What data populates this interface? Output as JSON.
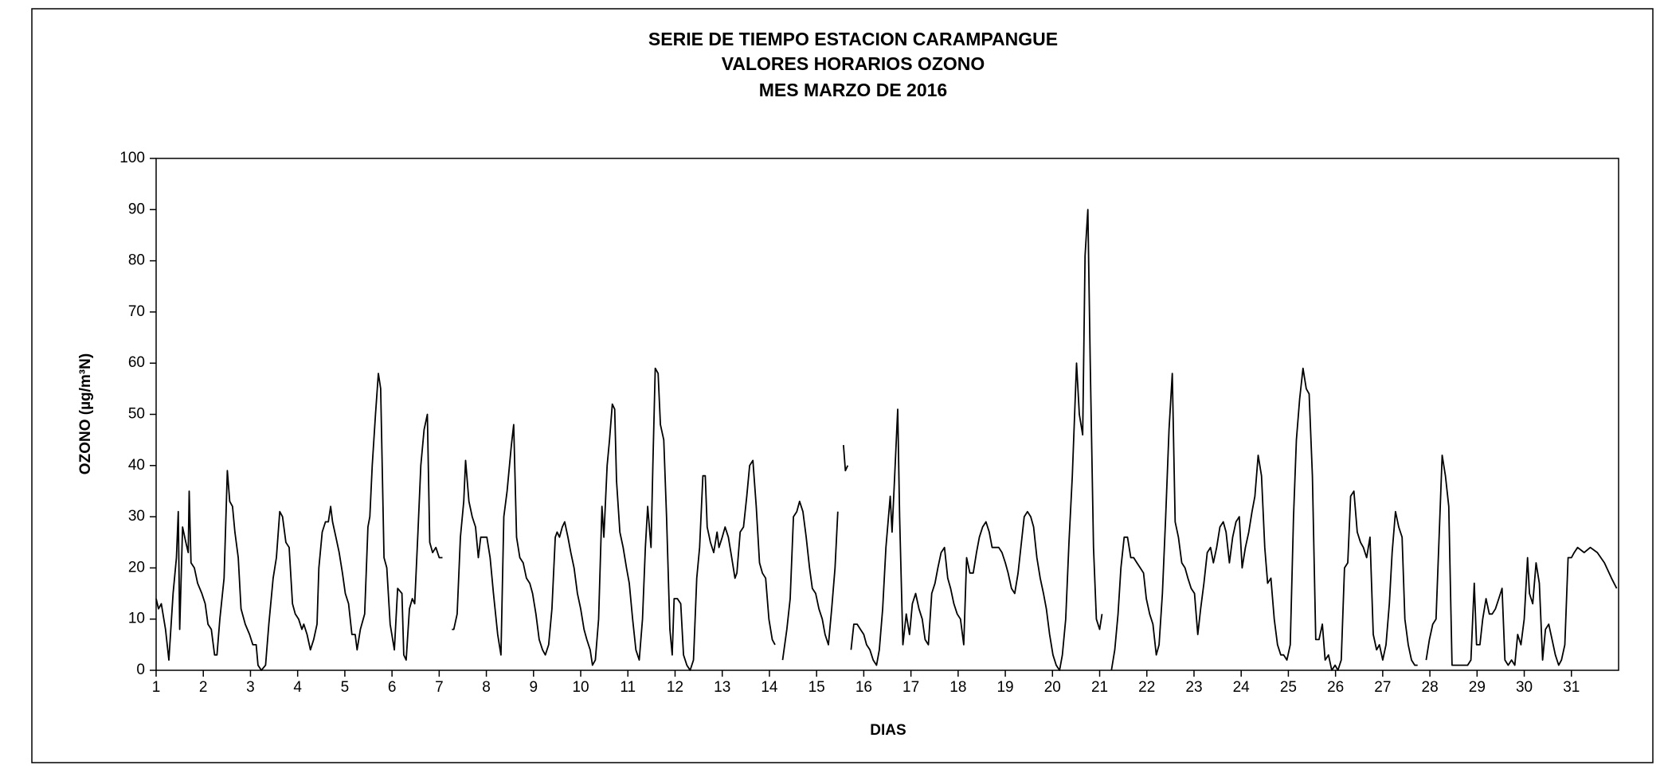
{
  "chart_data": {
    "type": "line",
    "title": [
      "SERIE DE TIEMPO ESTACION CARAMPANGUE",
      "VALORES HORARIOS OZONO",
      "MES MARZO DE 2016"
    ],
    "x_label": "DIAS",
    "y_label": "OZONO (µg/m³N)",
    "color": "#000000",
    "xlim": [
      1,
      32
    ],
    "ylim": [
      0,
      100
    ],
    "xticks": [
      1,
      2,
      3,
      4,
      5,
      6,
      7,
      8,
      9,
      10,
      11,
      12,
      13,
      14,
      15,
      16,
      17,
      18,
      19,
      20,
      21,
      22,
      23,
      24,
      25,
      26,
      27,
      28,
      29,
      30,
      31
    ],
    "yticks": [
      0,
      10,
      20,
      30,
      40,
      50,
      60,
      70,
      80,
      90,
      100
    ],
    "x": [
      1.0,
      1.05,
      1.11,
      1.2,
      1.27,
      1.36,
      1.43,
      1.47,
      1.5,
      1.56,
      1.63,
      1.68,
      1.7,
      1.74,
      1.81,
      1.88,
      1.97,
      2.04,
      2.1,
      2.17,
      2.24,
      2.29,
      2.35,
      2.44,
      2.51,
      2.56,
      2.62,
      2.67,
      2.74,
      2.8,
      2.89,
      2.98,
      3.05,
      3.12,
      3.16,
      3.23,
      3.32,
      3.39,
      3.48,
      3.55,
      3.62,
      3.68,
      3.75,
      3.82,
      3.89,
      3.95,
      4.02,
      4.09,
      4.13,
      4.2,
      4.27,
      4.34,
      4.41,
      4.45,
      4.52,
      4.59,
      4.65,
      4.7,
      4.74,
      4.81,
      4.88,
      4.95,
      5.01,
      5.08,
      5.15,
      5.22,
      5.26,
      5.33,
      5.42,
      5.49,
      5.53,
      5.58,
      5.65,
      5.71,
      5.76,
      5.83,
      5.89,
      5.96,
      6.05,
      6.12,
      6.21,
      6.25,
      6.3,
      6.37,
      6.43,
      6.48,
      6.55,
      6.61,
      6.68,
      6.75,
      6.8,
      6.86,
      6.93,
      7.0,
      7.07,
      7.17,
      7.27,
      7.31,
      7.38,
      7.45,
      7.52,
      7.56,
      7.63,
      7.7,
      7.77,
      7.83,
      7.88,
      7.95,
      8.01,
      8.08,
      8.15,
      8.24,
      8.31,
      8.37,
      8.44,
      8.53,
      8.58,
      8.64,
      8.71,
      8.78,
      8.85,
      8.92,
      8.98,
      9.05,
      9.12,
      9.19,
      9.25,
      9.32,
      9.39,
      9.46,
      9.5,
      9.55,
      9.61,
      9.66,
      9.73,
      9.79,
      9.86,
      9.93,
      10.0,
      10.07,
      10.13,
      10.2,
      10.25,
      10.31,
      10.38,
      10.45,
      10.49,
      10.56,
      10.61,
      10.67,
      10.72,
      10.76,
      10.83,
      10.9,
      10.97,
      11.03,
      11.1,
      11.17,
      11.24,
      11.31,
      11.37,
      11.42,
      11.49,
      11.53,
      11.58,
      11.64,
      11.69,
      11.76,
      11.82,
      11.89,
      11.94,
      11.98,
      12.05,
      12.12,
      12.18,
      12.25,
      12.32,
      12.39,
      12.46,
      12.52,
      12.59,
      12.64,
      12.68,
      12.75,
      12.82,
      12.89,
      12.93,
      13.0,
      13.06,
      13.13,
      13.2,
      13.27,
      13.31,
      13.38,
      13.45,
      13.52,
      13.58,
      13.65,
      13.72,
      13.79,
      13.85,
      13.92,
      13.99,
      14.06,
      14.12,
      14.2,
      14.28,
      14.37,
      14.44,
      14.51,
      14.58,
      14.64,
      14.71,
      14.78,
      14.85,
      14.91,
      14.98,
      15.05,
      15.12,
      15.18,
      15.25,
      15.32,
      15.39,
      15.45,
      15.51,
      15.57,
      15.61,
      15.66,
      15.7,
      15.73,
      15.79,
      15.86,
      15.93,
      16.0,
      16.06,
      16.13,
      16.2,
      16.27,
      16.33,
      16.4,
      16.47,
      16.56,
      16.6,
      16.65,
      16.72,
      16.76,
      16.83,
      16.9,
      16.97,
      17.03,
      17.1,
      17.17,
      17.24,
      17.3,
      17.37,
      17.44,
      17.51,
      17.57,
      17.64,
      17.71,
      17.78,
      17.84,
      17.91,
      17.98,
      18.05,
      18.12,
      18.18,
      18.25,
      18.32,
      18.39,
      18.45,
      18.52,
      18.59,
      18.66,
      18.72,
      18.79,
      18.86,
      18.93,
      19.0,
      19.06,
      19.13,
      19.2,
      19.27,
      19.33,
      19.4,
      19.47,
      19.54,
      19.6,
      19.67,
      19.74,
      19.81,
      19.87,
      19.94,
      20.01,
      20.08,
      20.15,
      20.21,
      20.28,
      20.35,
      20.42,
      20.51,
      20.57,
      20.64,
      20.69,
      20.75,
      20.8,
      20.87,
      20.93,
      21.0,
      21.05,
      21.15,
      21.25,
      21.32,
      21.39,
      21.45,
      21.52,
      21.59,
      21.66,
      21.72,
      21.79,
      21.86,
      21.93,
      21.99,
      22.06,
      22.13,
      22.2,
      22.26,
      22.33,
      22.4,
      22.47,
      22.54,
      22.6,
      22.67,
      22.74,
      22.81,
      22.87,
      22.94,
      23.01,
      23.08,
      23.14,
      23.21,
      23.28,
      23.35,
      23.41,
      23.48,
      23.55,
      23.62,
      23.68,
      23.75,
      23.82,
      23.89,
      23.96,
      24.02,
      24.09,
      24.16,
      24.23,
      24.29,
      24.36,
      24.43,
      24.5,
      24.56,
      24.63,
      24.7,
      24.77,
      24.84,
      24.9,
      24.97,
      25.04,
      25.11,
      25.17,
      25.24,
      25.31,
      25.38,
      25.44,
      25.51,
      25.58,
      25.65,
      25.72,
      25.78,
      25.85,
      25.92,
      25.99,
      26.05,
      26.12,
      26.19,
      26.26,
      26.32,
      26.39,
      26.46,
      26.53,
      26.59,
      26.66,
      26.73,
      26.8,
      26.87,
      26.93,
      27.0,
      27.07,
      27.14,
      27.2,
      27.27,
      27.34,
      27.41,
      27.47,
      27.54,
      27.61,
      27.68,
      27.74,
      27.83,
      27.92,
      27.99,
      28.06,
      28.13,
      28.2,
      28.26,
      28.33,
      28.4,
      28.47,
      28.53,
      28.6,
      28.67,
      28.74,
      28.8,
      28.87,
      28.94,
      28.99,
      29.06,
      29.12,
      29.19,
      29.26,
      29.32,
      29.39,
      29.46,
      29.53,
      29.59,
      29.66,
      29.73,
      29.8,
      29.86,
      29.93,
      30.0,
      30.07,
      30.11,
      30.18,
      30.25,
      30.32,
      30.39,
      30.45,
      30.52,
      30.59,
      30.66,
      30.73,
      30.79,
      30.86,
      30.93,
      31.0,
      31.06,
      31.13,
      31.27,
      31.4,
      31.55,
      31.7,
      31.85,
      31.96
    ],
    "values": [
      14,
      12,
      13,
      8,
      2,
      15,
      22,
      31,
      8,
      28,
      25,
      23,
      35,
      21,
      20,
      17,
      15,
      13,
      9,
      8,
      3,
      3,
      10,
      18,
      39,
      33,
      32,
      27,
      22,
      12,
      9,
      7,
      5,
      5,
      1,
      0,
      1,
      9,
      18,
      22,
      31,
      30,
      25,
      24,
      13,
      11,
      10,
      8,
      9,
      7,
      4,
      6,
      9,
      20,
      27,
      29,
      29,
      32,
      29,
      26,
      23,
      19,
      15,
      13,
      7,
      7,
      4,
      8,
      11,
      28,
      30,
      40,
      50,
      58,
      55,
      22,
      20,
      9,
      4,
      16,
      15,
      3,
      2,
      12,
      14,
      13,
      27,
      40,
      47,
      50,
      25,
      23,
      24,
      22,
      22,
      null,
      8,
      8,
      11,
      26,
      33,
      41,
      33,
      30,
      28,
      22,
      26,
      26,
      26,
      22,
      15,
      7,
      3,
      30,
      35,
      44,
      48,
      26,
      22,
      21,
      18,
      17,
      15,
      11,
      6,
      4,
      3,
      5,
      12,
      26,
      27,
      26,
      28,
      29,
      26,
      23,
      20,
      15,
      12,
      8,
      6,
      4,
      1,
      2,
      10,
      32,
      26,
      40,
      45,
      52,
      51,
      37,
      27,
      24,
      20,
      17,
      10,
      4,
      2,
      10,
      24,
      32,
      24,
      40,
      59,
      58,
      48,
      45,
      30,
      8,
      3,
      14,
      14,
      13,
      3,
      1,
      0,
      2,
      18,
      24,
      38,
      38,
      28,
      25,
      23,
      27,
      24,
      26,
      28,
      26,
      22,
      18,
      19,
      27,
      28,
      34,
      40,
      41,
      32,
      21,
      19,
      18,
      10,
      6,
      5,
      null,
      2,
      8,
      14,
      30,
      31,
      33,
      31,
      26,
      20,
      16,
      15,
      12,
      10,
      7,
      5,
      12,
      20,
      31,
      null,
      44,
      39,
      40,
      null,
      4,
      9,
      9,
      8,
      7,
      5,
      4,
      2,
      1,
      4,
      12,
      24,
      34,
      27,
      37,
      51,
      30,
      5,
      11,
      7,
      13,
      15,
      12,
      10,
      6,
      5,
      15,
      17,
      20,
      23,
      24,
      18,
      16,
      13,
      11,
      10,
      5,
      22,
      19,
      19,
      23,
      26,
      28,
      29,
      27,
      24,
      24,
      24,
      23,
      21,
      19,
      16,
      15,
      19,
      24,
      30,
      31,
      30,
      28,
      22,
      18,
      15,
      12,
      7,
      3,
      1,
      0,
      3,
      10,
      25,
      38,
      60,
      50,
      46,
      81,
      90,
      60,
      24,
      10,
      8,
      11,
      null,
      0,
      4,
      11,
      20,
      26,
      26,
      22,
      22,
      21,
      20,
      19,
      14,
      11,
      9,
      3,
      5,
      15,
      30,
      47,
      58,
      29,
      26,
      21,
      20,
      18,
      16,
      15,
      7,
      12,
      17,
      23,
      24,
      21,
      24,
      28,
      29,
      27,
      21,
      26,
      29,
      30,
      20,
      24,
      27,
      31,
      34,
      42,
      38,
      24,
      17,
      18,
      10,
      5,
      3,
      3,
      2,
      5,
      30,
      45,
      53,
      59,
      55,
      54,
      38,
      6,
      6,
      9,
      2,
      3,
      0,
      1,
      0,
      2,
      20,
      21,
      34,
      35,
      27,
      25,
      24,
      22,
      26,
      7,
      4,
      5,
      2,
      5,
      13,
      23,
      31,
      28,
      26,
      10,
      5,
      2,
      1,
      1,
      null,
      2,
      6,
      9,
      10,
      27,
      42,
      38,
      32,
      1,
      1,
      1,
      1,
      1,
      1,
      2,
      17,
      5,
      5,
      10,
      14,
      11,
      11,
      12,
      14,
      16,
      2,
      1,
      2,
      1,
      7,
      5,
      10,
      22,
      15,
      13,
      21,
      17,
      2,
      8,
      9,
      6,
      3,
      1,
      2,
      5,
      22,
      22,
      23,
      24,
      23,
      24,
      23,
      21,
      18,
      16
    ]
  }
}
